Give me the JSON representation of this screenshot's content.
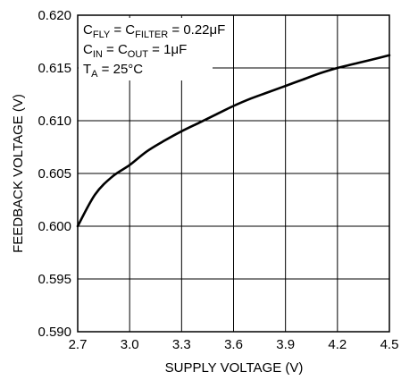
{
  "chart_data": {
    "type": "line",
    "xlabel": "SUPPLY VOLTAGE (V)",
    "ylabel": "FEEDBACK VOLTAGE (V)",
    "xlim": [
      2.7,
      4.5
    ],
    "ylim": [
      0.59,
      0.62
    ],
    "x_ticks": [
      "2.7",
      "3.0",
      "3.3",
      "3.6",
      "3.9",
      "4.2",
      "4.5"
    ],
    "y_ticks": [
      "0.620",
      "0.615",
      "0.610",
      "0.605",
      "0.600",
      "0.595",
      "0.590"
    ],
    "grid": true,
    "series": [
      {
        "x": [
          2.7,
          2.8,
          2.9,
          3.0,
          3.1,
          3.2,
          3.3,
          3.4,
          3.5,
          3.6,
          3.7,
          3.8,
          3.9,
          4.0,
          4.1,
          4.2,
          4.3,
          4.4,
          4.5
        ],
        "y": [
          0.6,
          0.603,
          0.6047,
          0.6058,
          0.6071,
          0.6081,
          0.609,
          0.6098,
          0.6106,
          0.6114,
          0.6121,
          0.6127,
          0.6133,
          0.6139,
          0.6145,
          0.615,
          0.6154,
          0.6158,
          0.6162
        ]
      }
    ],
    "annotations": {
      "line1": {
        "a": "C",
        "a_sub": "FLY",
        "b": " = C",
        "b_sub": "FILTER",
        "c": " = 0.22μF"
      },
      "line2": {
        "a": "C",
        "a_sub": "IN",
        "b": " = C",
        "b_sub": "OUT",
        "c": " = 1μF"
      },
      "line3": {
        "a": "T",
        "a_sub": "A",
        "b": " = 25°C"
      }
    }
  }
}
